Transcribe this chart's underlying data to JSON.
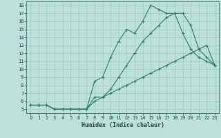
{
  "xlabel": "Humidex (Indice chaleur)",
  "background_color": "#bde0d8",
  "grid_color": "#9ecec6",
  "line_color": "#2a7a6a",
  "xlim": [
    -0.5,
    23.5
  ],
  "ylim": [
    4.5,
    18.5
  ],
  "xticks": [
    0,
    1,
    2,
    3,
    4,
    5,
    6,
    7,
    8,
    9,
    10,
    11,
    12,
    13,
    14,
    15,
    16,
    17,
    18,
    19,
    20,
    21,
    22,
    23
  ],
  "yticks": [
    5,
    6,
    7,
    8,
    9,
    10,
    11,
    12,
    13,
    14,
    15,
    16,
    17,
    18
  ],
  "line_top_x": [
    0,
    1,
    2,
    3,
    4,
    5,
    6,
    7,
    8,
    9,
    10,
    11,
    12,
    13,
    14,
    15,
    16,
    17,
    18,
    19,
    20,
    21,
    22,
    23
  ],
  "line_top_y": [
    5.5,
    5.5,
    5.5,
    5.0,
    5.0,
    5.0,
    5.0,
    5.0,
    8.5,
    9.0,
    11.5,
    13.5,
    15.0,
    14.5,
    16.0,
    18.0,
    17.5,
    17.0,
    17.0,
    14.5,
    12.5,
    11.5,
    11.0,
    10.5
  ],
  "line_mid_x": [
    0,
    1,
    2,
    3,
    4,
    5,
    6,
    7,
    8,
    9,
    10,
    11,
    12,
    13,
    14,
    15,
    16,
    17,
    18,
    19,
    20,
    21,
    22,
    23
  ],
  "line_mid_y": [
    5.5,
    5.5,
    5.5,
    5.0,
    5.0,
    5.0,
    5.0,
    5.0,
    6.5,
    6.5,
    7.5,
    9.0,
    10.5,
    12.0,
    13.5,
    14.5,
    15.5,
    16.5,
    17.0,
    17.0,
    15.5,
    12.5,
    11.5,
    10.5
  ],
  "line_bot_x": [
    0,
    1,
    2,
    3,
    4,
    5,
    6,
    7,
    8,
    9,
    10,
    11,
    12,
    13,
    14,
    15,
    16,
    17,
    18,
    19,
    20,
    21,
    22,
    23
  ],
  "line_bot_y": [
    5.5,
    5.5,
    5.5,
    5.0,
    5.0,
    5.0,
    5.0,
    5.0,
    6.0,
    6.5,
    7.0,
    7.5,
    8.0,
    8.5,
    9.0,
    9.5,
    10.0,
    10.5,
    11.0,
    11.5,
    12.0,
    12.5,
    13.0,
    10.5
  ]
}
